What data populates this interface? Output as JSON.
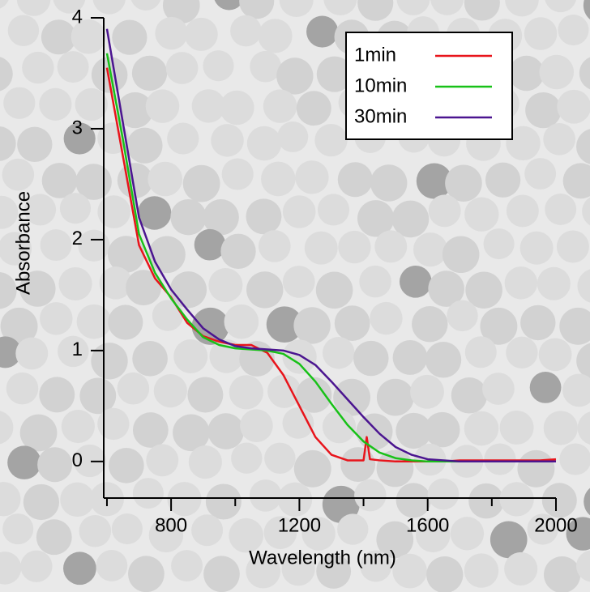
{
  "chart_data": {
    "type": "line",
    "x_label": "Wavelength (nm)",
    "y_label": "Absorbance",
    "x": [
      600,
      650,
      700,
      750,
      800,
      850,
      900,
      950,
      1000,
      1050,
      1100,
      1150,
      1200,
      1250,
      1300,
      1350,
      1400,
      1410,
      1420,
      1450,
      1500,
      1550,
      1600,
      1650,
      1700,
      1750,
      1800,
      1850,
      1900,
      1950,
      2000
    ],
    "series": [
      {
        "name": "1min",
        "color": "#e8141b",
        "values": [
          3.55,
          2.75,
          1.95,
          1.65,
          1.48,
          1.25,
          1.13,
          1.08,
          1.05,
          1.05,
          0.98,
          0.78,
          0.5,
          0.22,
          0.06,
          0.01,
          0.01,
          0.22,
          0.02,
          0.01,
          0,
          0,
          0,
          0,
          0.01,
          0.01,
          0.01,
          0.01,
          0.01,
          0.01,
          0.02
        ]
      },
      {
        "name": "10min",
        "color": "#18c118",
        "values": [
          3.68,
          2.9,
          2.05,
          1.7,
          1.47,
          1.28,
          1.12,
          1.05,
          1.02,
          1.01,
          1.0,
          0.97,
          0.88,
          0.72,
          0.52,
          0.33,
          0.18,
          0.16,
          0.14,
          0.08,
          0.03,
          0.01,
          0,
          0,
          0,
          0,
          0,
          0,
          0,
          0,
          0
        ]
      },
      {
        "name": "30min",
        "color": "#4b1590",
        "values": [
          3.9,
          3.05,
          2.2,
          1.8,
          1.55,
          1.37,
          1.2,
          1.1,
          1.04,
          1.02,
          1.01,
          1.0,
          0.96,
          0.87,
          0.72,
          0.56,
          0.4,
          0.37,
          0.34,
          0.25,
          0.13,
          0.06,
          0.02,
          0.01,
          0,
          0,
          0,
          0,
          0,
          0,
          0
        ]
      }
    ],
    "xlim": [
      590,
      2000
    ],
    "ylim": [
      -0.33,
      4
    ],
    "xticks": [
      800,
      1200,
      1600,
      2000
    ],
    "xminorticks": [
      600,
      1000,
      1400,
      1800
    ],
    "yticks": [
      0,
      1,
      2,
      3,
      4
    ],
    "legend": "top-right",
    "grid": false
  }
}
